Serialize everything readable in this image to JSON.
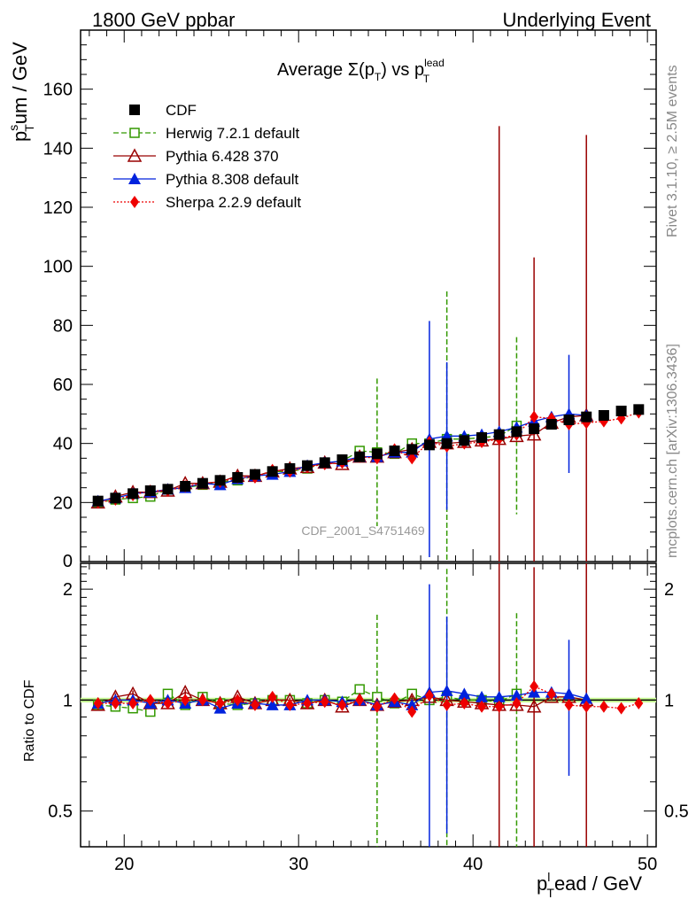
{
  "header": {
    "energy_label": "1800 GeV ppbar",
    "event_label": "Underlying Event"
  },
  "side": {
    "rivet": "Rivet 3.1.10, ≥ 2.5M events",
    "mcplots": "mcplots.cern.ch [arXiv:1306.3436]"
  },
  "watermark": "CDF_2001_S4751469",
  "plot_title": {
    "prefix": "Average ",
    "sigma": "Σ(p",
    "sub_t": "T",
    "mid": ") vs p",
    "sup_lead": "lead",
    "sub_t2": "T"
  },
  "axis_labels": {
    "y_main": "p",
    "y_main_sup": "s",
    "y_main_sub": "T",
    "y_main_rest": "um / GeV",
    "x_main": "p",
    "x_main_sup": "l",
    "x_main_sub": "T",
    "x_main_rest": "ead / GeV",
    "y_ratio": "Ratio to CDF"
  },
  "colors": {
    "cdf": "#000000",
    "herwig": "#339900",
    "pythia6": "#990000",
    "pythia8": "#0022dd",
    "sherpa": "#ee0000",
    "band": "#ccff99"
  },
  "chart_data": [
    {
      "type": "scatter",
      "panel": "main",
      "title": "Average Σ(pT) vs pT lead",
      "xlabel": "pT lead / GeV",
      "ylabel": "pT sum / GeV",
      "xlim": [
        17.5,
        50.5
      ],
      "ylim": [
        0,
        180
      ],
      "x_ticks": [
        "20",
        "30",
        "40",
        "50"
      ],
      "y_ticks": [
        "20",
        "40",
        "60",
        "80",
        "100",
        "120",
        "140",
        "160"
      ],
      "y_zero_label": "0",
      "legend_position": "top-left",
      "x": [
        18.5,
        19.5,
        20.5,
        21.5,
        22.5,
        23.5,
        24.5,
        25.5,
        26.5,
        27.5,
        28.5,
        29.5,
        30.5,
        31.5,
        32.5,
        33.5,
        34.5,
        35.5,
        36.5,
        37.5,
        38.5,
        39.5,
        40.5,
        41.5,
        42.5,
        43.5,
        44.5,
        45.5,
        46.5,
        47.5,
        48.5,
        49.5
      ],
      "series": [
        {
          "name": "CDF",
          "key": "cdf",
          "marker": "square",
          "values": [
            20.5,
            21.5,
            23,
            24,
            24.5,
            25.5,
            26.5,
            27.5,
            28.5,
            29.5,
            30.5,
            31.5,
            32.5,
            33.5,
            34.5,
            35.5,
            36.5,
            37.5,
            38,
            39.5,
            40,
            41,
            42,
            43,
            44,
            45,
            46.5,
            48,
            49,
            49.5,
            51,
            51.5
          ]
        },
        {
          "name": "Herwig 7.2.1 default",
          "key": "herwig",
          "marker": "open-square",
          "dash": "6,3",
          "values": [
            20,
            21,
            21.5,
            22,
            24.5,
            25,
            26,
            27,
            27.5,
            29,
            30.5,
            30.5,
            31.5,
            33.5,
            34,
            37.5,
            37,
            36.5,
            40,
            40,
            41.5,
            41.5,
            42,
            42.5,
            46,
            null,
            null,
            null,
            null,
            null,
            null,
            null
          ],
          "errors": [
            0.5,
            0.5,
            0.5,
            0.5,
            0.5,
            0.5,
            0.5,
            0.5,
            0.5,
            0.5,
            0.5,
            0.5,
            0.5,
            0.5,
            0.8,
            1,
            25,
            1,
            1,
            1,
            50,
            1,
            1,
            1,
            30,
            null,
            null,
            null,
            null,
            null,
            null,
            null
          ]
        },
        {
          "name": "Pythia 6.428 370",
          "key": "pythia6",
          "marker": "open-triangle",
          "values": [
            20,
            22,
            23.5,
            23.5,
            24,
            26.5,
            26.5,
            27,
            29,
            29,
            30.5,
            31.5,
            32,
            33.5,
            33,
            35.5,
            35.5,
            37,
            38,
            40.5,
            40,
            40.5,
            41,
            41.5,
            42.5,
            43,
            47,
            49,
            49.5,
            null,
            null,
            null
          ],
          "errors": [
            0.5,
            0.5,
            0.5,
            0.5,
            0.5,
            0.5,
            0.5,
            0.5,
            0.5,
            0.5,
            0.5,
            0.5,
            0.5,
            0.5,
            0.8,
            1,
            1,
            1,
            1,
            1.5,
            1,
            1,
            1,
            106,
            1,
            60,
            1,
            1,
            95,
            null,
            null,
            null
          ]
        },
        {
          "name": "Pythia 8.308 default",
          "key": "pythia8",
          "marker": "triangle",
          "values": [
            20.5,
            21.5,
            23,
            23.5,
            24.5,
            25,
            26.5,
            26,
            28,
            29,
            29.5,
            30.5,
            32.5,
            33.5,
            34,
            35.5,
            35.5,
            37,
            37,
            41.5,
            42.5,
            42.5,
            43,
            44,
            45.5,
            47.5,
            49,
            50,
            49.5,
            null,
            null,
            null
          ],
          "errors": [
            0.5,
            0.5,
            0.5,
            0.5,
            0.5,
            0.5,
            0.5,
            0.5,
            0.5,
            0.5,
            0.5,
            0.5,
            0.5,
            0.5,
            0.8,
            1,
            1,
            1,
            1,
            40,
            25,
            1,
            1,
            1,
            1,
            1,
            1,
            20,
            1,
            null,
            null,
            null
          ]
        },
        {
          "name": "Sherpa 2.2.9 default",
          "key": "sherpa",
          "marker": "diamond",
          "dash": "2,2",
          "values": [
            20,
            21,
            22.5,
            24,
            24,
            25.5,
            26.5,
            27,
            28.5,
            28.5,
            31,
            30.5,
            32,
            33,
            33.5,
            35.5,
            35,
            38,
            35,
            40.5,
            39,
            40,
            40.5,
            41.5,
            43,
            49,
            48.5,
            46.5,
            47,
            47.5,
            48.5,
            50.5
          ],
          "errors": [
            0.5,
            0.5,
            0.5,
            0.5,
            0.5,
            0.5,
            0.5,
            0.5,
            0.5,
            0.5,
            0.5,
            0.5,
            0.5,
            0.5,
            0.8,
            1,
            1,
            1,
            1,
            1,
            1,
            1,
            1,
            1,
            1,
            1,
            1,
            1,
            1,
            1,
            1,
            1
          ]
        }
      ]
    },
    {
      "type": "scatter",
      "panel": "ratio",
      "ylabel": "Ratio to CDF",
      "xlabel": "pT lead / GeV",
      "scale": "log",
      "xlim": [
        17.5,
        50.5
      ],
      "ylim": [
        0.4,
        2.35
      ],
      "y_ticks": [
        "0.5",
        "1",
        "2"
      ],
      "x": [
        18.5,
        19.5,
        20.5,
        21.5,
        22.5,
        23.5,
        24.5,
        25.5,
        26.5,
        27.5,
        28.5,
        29.5,
        30.5,
        31.5,
        32.5,
        33.5,
        34.5,
        35.5,
        36.5,
        37.5,
        38.5,
        39.5,
        40.5,
        41.5,
        42.5,
        43.5,
        44.5,
        45.5,
        46.5,
        47.5,
        48.5,
        49.5
      ],
      "series": [
        {
          "name": "Herwig 7.2.1 default",
          "key": "herwig",
          "values": [
            0.97,
            0.96,
            0.95,
            0.93,
            1.04,
            0.97,
            1.02,
            0.98,
            0.97,
            0.98,
            1.0,
            1.0,
            0.98,
            1.0,
            0.99,
            1.07,
            1.02,
            0.98,
            1.04,
            1.0,
            1.02,
            1.0,
            1.0,
            0.99,
            1.04,
            null,
            null,
            null,
            null,
            null,
            null,
            null
          ]
        },
        {
          "name": "Pythia 6.428 370",
          "key": "pythia6",
          "values": [
            0.97,
            1.02,
            1.04,
            0.98,
            0.98,
            1.05,
            1.0,
            0.98,
            1.02,
            0.98,
            1.0,
            1.0,
            0.98,
            1.0,
            0.96,
            1.0,
            0.97,
            0.99,
            1.0,
            1.02,
            1.0,
            0.99,
            0.98,
            0.97,
            0.97,
            0.96,
            1.02,
            1.02,
            1.0,
            null,
            null,
            null
          ]
        },
        {
          "name": "Pythia 8.308 default",
          "key": "pythia8",
          "values": [
            0.98,
            1.0,
            1.0,
            0.98,
            1.0,
            0.98,
            1.0,
            0.95,
            0.98,
            0.98,
            0.97,
            0.97,
            1.0,
            1.0,
            0.99,
            1.0,
            0.97,
            0.99,
            0.97,
            1.05,
            1.06,
            1.04,
            1.02,
            1.02,
            1.03,
            1.05,
            1.05,
            1.04,
            1.01,
            null,
            null,
            null
          ]
        },
        {
          "name": "Sherpa 2.2.9 default",
          "key": "sherpa",
          "values": [
            0.98,
            0.98,
            0.98,
            1.0,
            0.98,
            1.0,
            1.0,
            0.98,
            1.0,
            0.97,
            1.02,
            0.97,
            0.98,
            0.99,
            0.97,
            1.0,
            0.96,
            1.01,
            0.93,
            1.03,
            0.97,
            0.98,
            0.96,
            0.96,
            0.98,
            1.09,
            1.04,
            0.97,
            0.96,
            0.96,
            0.95,
            0.98
          ]
        }
      ]
    }
  ]
}
